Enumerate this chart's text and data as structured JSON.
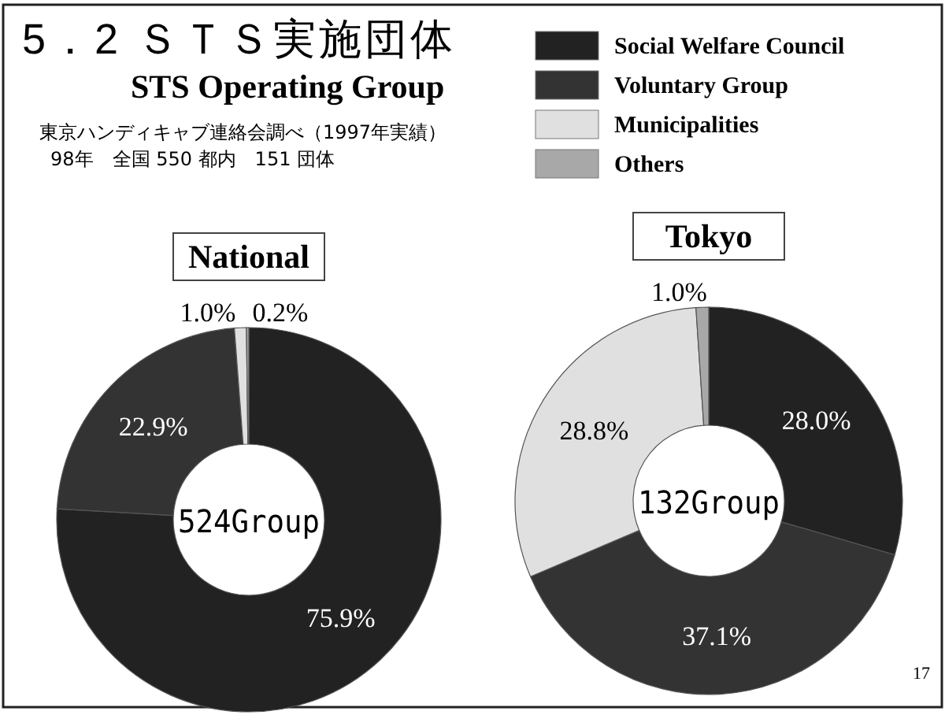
{
  "chart_data": [
    {
      "type": "donut",
      "title": "5．2 ＳＴＳ実施団体",
      "subtitle": "STS Operating Group",
      "annotations": [
        "東京ハンディキャブ連絡会調べ（1997年実績）",
        "98年　全国 550 都内　151 団体",
        "National",
        "524Group"
      ],
      "categories": [
        "Social Welfare Council",
        "Voluntary Group",
        "Municipalities",
        "Others"
      ],
      "values": [
        75.9,
        22.9,
        1.0,
        0.2
      ],
      "value_labels": [
        "75.9%",
        "22.9%",
        "1.0%",
        "0.2%"
      ],
      "colors": [
        "#222222",
        "#333333",
        "#e0e0e0",
        "#a8a8a8"
      ],
      "legend": "top right"
    },
    {
      "type": "donut",
      "annotations": [
        "Tokyo",
        "132Group",
        "17"
      ],
      "categories": [
        null,
        null,
        null,
        null
      ],
      "values": [
        28.0,
        37.1,
        28.8,
        1.0
      ],
      "value_labels": [
        "28.0%",
        "37.1%",
        "28.8%",
        "1.0%"
      ],
      "colors": [
        "#222222",
        "#333333",
        "#e0e0e0",
        "#a8a8a8"
      ]
    }
  ]
}
